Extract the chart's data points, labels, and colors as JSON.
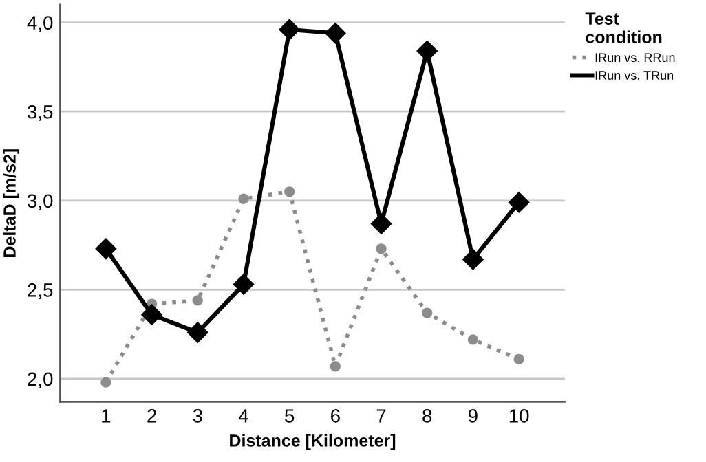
{
  "chart_data": {
    "type": "line",
    "xlabel": "Distance [Kilometer]",
    "ylabel": "DeltaD [m/s2]",
    "legend_title": "Test\ncondition",
    "legend": "top right",
    "x": [
      1,
      2,
      3,
      4,
      5,
      6,
      7,
      8,
      9,
      10
    ],
    "xlim": [
      0,
      11
    ],
    "xticks": [
      1,
      2,
      3,
      4,
      5,
      6,
      7,
      8,
      9,
      10
    ],
    "ylim": [
      1.87,
      4.1
    ],
    "yticks": [
      {
        "value": 2.0,
        "label": "2,0"
      },
      {
        "value": 2.5,
        "label": "2,5"
      },
      {
        "value": 3.0,
        "label": "3,0"
      },
      {
        "value": 3.5,
        "label": "3,5"
      },
      {
        "value": 4.0,
        "label": "4,0"
      }
    ],
    "grid": "y",
    "series": [
      {
        "name": "IRun vs. RRun",
        "color": "#8c8c8c",
        "marker": "circle",
        "line_style": "dotted",
        "values": [
          1.98,
          2.42,
          2.44,
          3.01,
          3.05,
          2.07,
          2.73,
          2.37,
          2.22,
          2.11
        ]
      },
      {
        "name": "IRun vs. TRun",
        "color": "#000000",
        "marker": "diamond",
        "line_style": "solid",
        "values": [
          2.73,
          2.36,
          2.26,
          2.53,
          3.96,
          3.94,
          2.87,
          3.84,
          2.67,
          2.99
        ]
      }
    ]
  }
}
